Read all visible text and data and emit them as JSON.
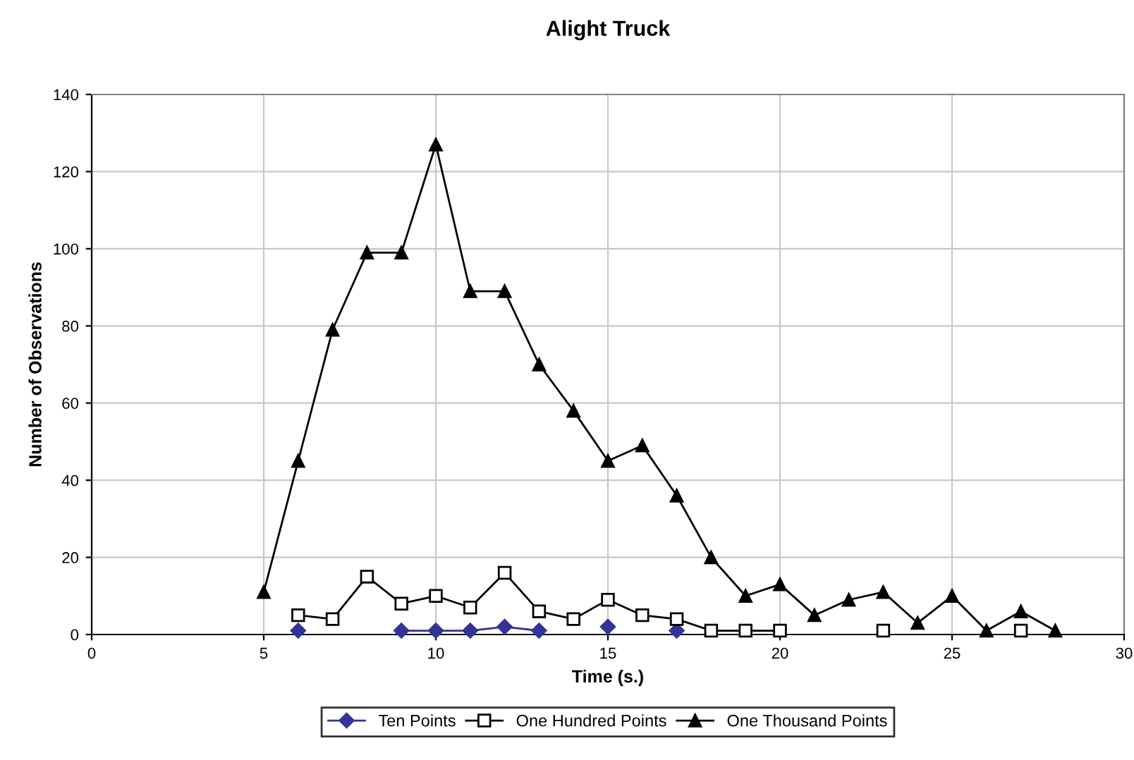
{
  "chart_data": {
    "type": "line",
    "title": "Alight Truck",
    "xlabel": "Time (s.)",
    "ylabel": "Number of Observations",
    "xlim": [
      0,
      30
    ],
    "xticks": [
      0,
      5,
      10,
      15,
      20,
      25,
      30
    ],
    "ylim": [
      0,
      140
    ],
    "yticks": [
      0,
      20,
      40,
      60,
      80,
      100,
      120,
      140
    ],
    "grid": true,
    "legend": "bottom",
    "line_style": "solid",
    "series": [
      {
        "name": "Ten Points",
        "color": "#333399",
        "marker": "diamond",
        "x": [
          6,
          7,
          8,
          9,
          10,
          11,
          12,
          13,
          14,
          15,
          16,
          17
        ],
        "values": [
          1,
          null,
          null,
          1,
          1,
          1,
          2,
          1,
          null,
          2,
          null,
          1
        ]
      },
      {
        "name": "One Hundred Points",
        "color": "#000000",
        "marker": "square",
        "x": [
          6,
          7,
          8,
          9,
          10,
          11,
          12,
          13,
          14,
          15,
          16,
          17,
          18,
          19,
          20,
          21,
          22,
          23,
          24,
          25,
          26,
          27
        ],
        "values": [
          5,
          4,
          15,
          8,
          10,
          7,
          16,
          6,
          4,
          9,
          5,
          4,
          1,
          1,
          1,
          null,
          null,
          1,
          null,
          null,
          null,
          1
        ]
      },
      {
        "name": "One Thousand Points",
        "color": "#000000",
        "marker": "triangle",
        "x": [
          5,
          6,
          7,
          8,
          9,
          10,
          11,
          12,
          13,
          14,
          15,
          16,
          17,
          18,
          19,
          20,
          21,
          22,
          23,
          24,
          25,
          26,
          27,
          28
        ],
        "values": [
          11,
          45,
          79,
          99,
          99,
          127,
          89,
          89,
          70,
          58,
          45,
          49,
          36,
          20,
          10,
          13,
          5,
          9,
          11,
          3,
          10,
          1,
          6,
          1
        ]
      }
    ]
  }
}
